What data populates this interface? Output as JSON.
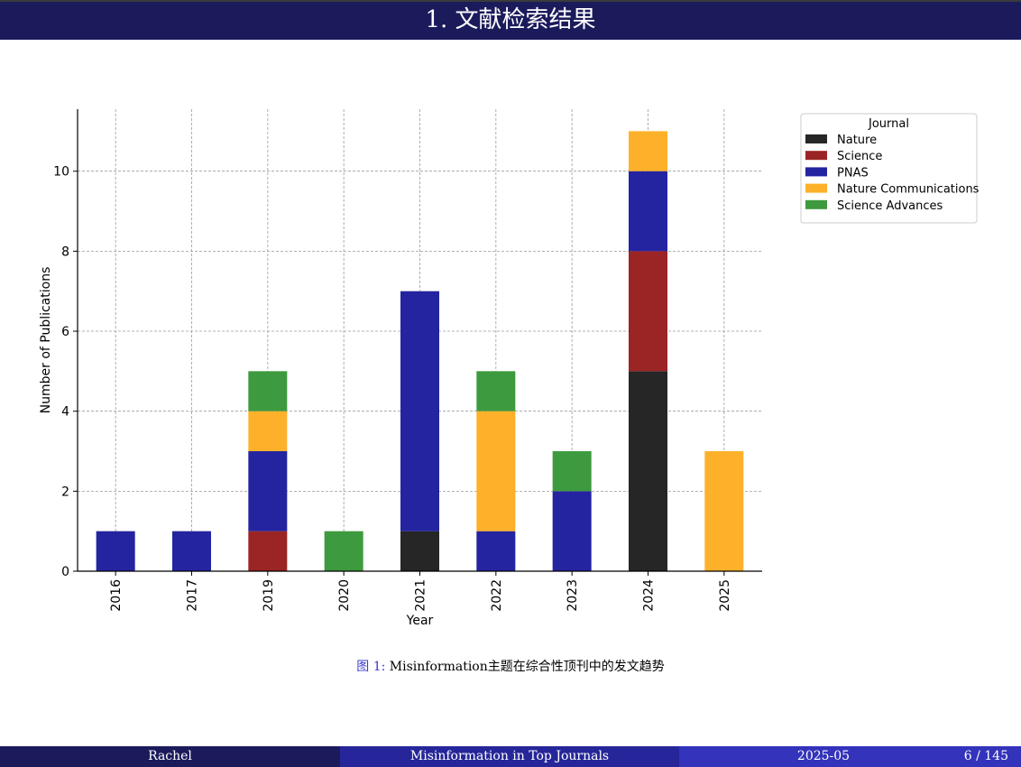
{
  "slide": {
    "title": "1. 文献检索结果"
  },
  "caption": {
    "label": "图 1:",
    "text": "Misinformation主题在综合性顶刊中的发文趋势"
  },
  "footer": {
    "author": "Rachel",
    "title": "Misinformation in Top Journals",
    "date": "2025-05",
    "page": "6 / 145"
  },
  "chart_data": {
    "type": "bar",
    "stacked": true,
    "categories": [
      "2016",
      "2017",
      "2019",
      "2020",
      "2021",
      "2022",
      "2023",
      "2024",
      "2025"
    ],
    "series": [
      {
        "name": "Nature",
        "color": "#262626",
        "values": [
          0,
          0,
          0,
          0,
          1,
          0,
          0,
          5,
          0
        ]
      },
      {
        "name": "Science",
        "color": "#9b2424",
        "values": [
          0,
          0,
          1,
          0,
          0,
          0,
          0,
          3,
          0
        ]
      },
      {
        "name": "PNAS",
        "color": "#2424a0",
        "values": [
          1,
          1,
          2,
          0,
          6,
          1,
          2,
          2,
          0
        ]
      },
      {
        "name": "Nature Communications",
        "color": "#fdb12a",
        "values": [
          0,
          0,
          1,
          0,
          0,
          3,
          0,
          1,
          3
        ]
      },
      {
        "name": "Science Advances",
        "color": "#3e9a3e",
        "values": [
          0,
          0,
          1,
          1,
          0,
          1,
          1,
          0,
          0
        ]
      }
    ],
    "xlabel": "Year",
    "ylabel": "Number of Publications",
    "ylim": [
      0,
      11.55
    ],
    "yticks": [
      0,
      2,
      4,
      6,
      8,
      10
    ],
    "grid": true,
    "legend": {
      "title": "Journal",
      "placement": "outside-top-right"
    }
  }
}
